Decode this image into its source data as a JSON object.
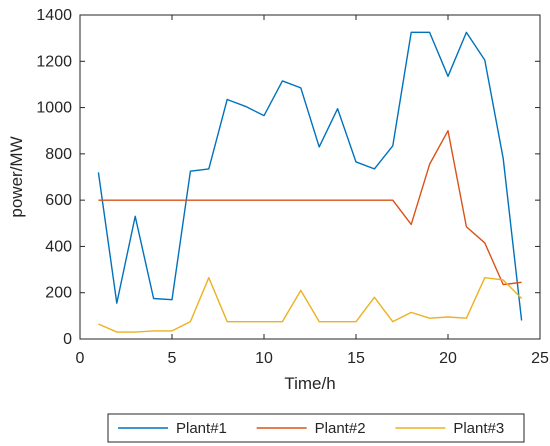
{
  "chart_data": {
    "type": "line",
    "title": "",
    "xlabel": "Time/h",
    "ylabel": "power/MW",
    "xlim": [
      0,
      25
    ],
    "ylim": [
      0,
      1400
    ],
    "xticks": [
      0,
      5,
      10,
      15,
      20,
      25
    ],
    "yticks": [
      0,
      200,
      400,
      600,
      800,
      1000,
      1200,
      1400
    ],
    "grid": false,
    "legend_position": "bottom",
    "x": [
      1,
      2,
      3,
      4,
      5,
      6,
      7,
      8,
      9,
      10,
      11,
      12,
      13,
      14,
      15,
      16,
      17,
      18,
      19,
      20,
      21,
      22,
      23,
      24
    ],
    "series": [
      {
        "name": "Plant#1",
        "color": "#0072BD",
        "values": [
          720,
          155,
          530,
          175,
          170,
          725,
          735,
          1035,
          1005,
          965,
          1115,
          1085,
          830,
          995,
          765,
          735,
          835,
          1325,
          1325,
          1135,
          1325,
          1205,
          780,
          80
        ]
      },
      {
        "name": "Plant#2",
        "color": "#D95319",
        "values": [
          600,
          600,
          600,
          600,
          600,
          600,
          600,
          600,
          600,
          600,
          600,
          600,
          600,
          600,
          600,
          600,
          600,
          495,
          755,
          900,
          485,
          415,
          235,
          245
        ]
      },
      {
        "name": "Plant#3",
        "color": "#EDB120",
        "values": [
          65,
          30,
          30,
          35,
          35,
          75,
          265,
          75,
          75,
          75,
          75,
          210,
          75,
          75,
          75,
          180,
          75,
          115,
          90,
          95,
          90,
          265,
          255,
          175
        ]
      }
    ]
  }
}
